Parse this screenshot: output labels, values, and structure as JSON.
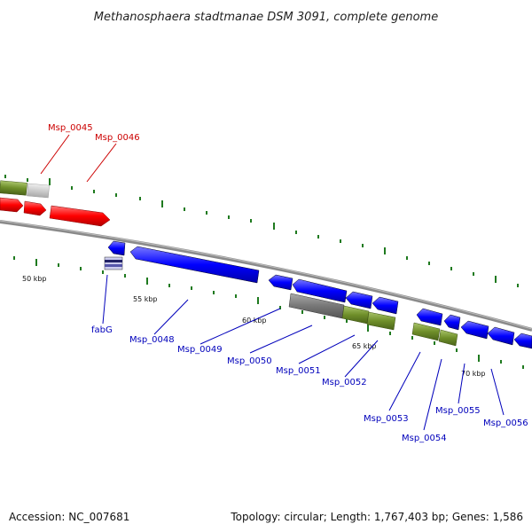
{
  "map": {
    "title": "Methanosphaera stadtmanae DSM 3091, complete genome",
    "accession": "Accession: NC_007681",
    "summary": "Topology: circular; Length: 1,767,403 bp; Genes: 1,586",
    "colors": {
      "backbone": "#8a8a8a",
      "plus_strand": "#ff0000",
      "minus_strand": "#0000ff",
      "rna_gene": "#6f8f2a",
      "pseudo_gray": "#777777",
      "light_gray": "#cccccc",
      "tick": "#1f7a1f",
      "label_plus": "#cc0000",
      "label_minus": "#0000bb"
    },
    "kbp_labels": [
      "50 kbp",
      "55 kbp",
      "60 kbp",
      "65 kbp",
      "70 kbp"
    ],
    "genes_top": [
      {
        "name": "Msp_0045"
      },
      {
        "name": "Msp_0046"
      }
    ],
    "genes_bottom": [
      {
        "name": "fabG"
      },
      {
        "name": "Msp_0048"
      },
      {
        "name": "Msp_0049"
      },
      {
        "name": "Msp_0050"
      },
      {
        "name": "Msp_0051"
      },
      {
        "name": "Msp_0052"
      },
      {
        "name": "Msp_0053"
      },
      {
        "name": "Msp_0054"
      },
      {
        "name": "Msp_0055"
      },
      {
        "name": "Msp_0056"
      }
    ]
  }
}
